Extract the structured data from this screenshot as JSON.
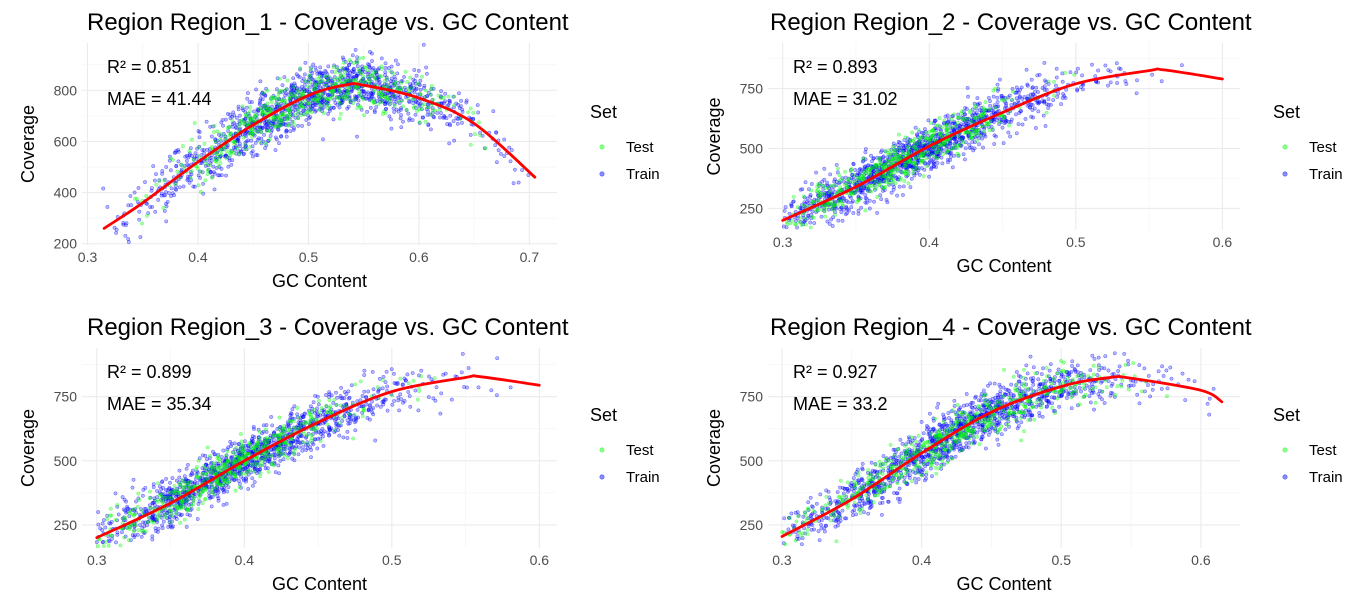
{
  "figure": {
    "legend_title": "Set"
  },
  "colors": {
    "test": "#00ff00",
    "train": "#0000ff",
    "fit": "#ff0000",
    "grid": "#ebebeb"
  },
  "chart_data": [
    {
      "type": "scatter",
      "title": "Region Region_1 - Coverage vs. GC Content",
      "xlabel": "GC Content",
      "ylabel": "Coverage",
      "xlim": [
        0.295,
        0.725
      ],
      "ylim": [
        195,
        985
      ],
      "xticks": [
        0.3,
        0.4,
        0.5,
        0.6,
        0.7
      ],
      "xtick_labels": [
        "0.3",
        "0.4",
        "0.5",
        "0.6",
        "0.7"
      ],
      "yticks": [
        200,
        400,
        600,
        800
      ],
      "ytick_labels": [
        "200",
        "400",
        "600",
        "800"
      ],
      "grid": true,
      "legend_position": "right",
      "annotations": [
        "R² = 0.851",
        "MAE = 41.44"
      ],
      "series": [
        {
          "name": "Test",
          "cloud": {
            "x_min": 0.33,
            "x_max": 0.68,
            "center": 0.5,
            "spread": 0.07,
            "y_noise": 48
          }
        },
        {
          "name": "Train",
          "cloud": {
            "x_min": 0.31,
            "x_max": 0.705,
            "center": 0.5,
            "spread": 0.08,
            "y_noise": 55
          }
        }
      ],
      "fit_line": {
        "x": [
          0.315,
          0.35,
          0.4,
          0.45,
          0.5,
          0.535,
          0.55,
          0.6,
          0.65,
          0.705
        ],
        "y": [
          260,
          360,
          520,
          665,
          780,
          822,
          820,
          770,
          670,
          460
        ]
      }
    },
    {
      "type": "scatter",
      "title": "Region Region_2 - Coverage vs. GC Content",
      "xlabel": "GC Content",
      "ylabel": "Coverage",
      "xlim": [
        0.29,
        0.612
      ],
      "ylim": [
        160,
        940
      ],
      "xticks": [
        0.3,
        0.4,
        0.5,
        0.6
      ],
      "xtick_labels": [
        "0.3",
        "0.4",
        "0.5",
        "0.6"
      ],
      "yticks": [
        250,
        500,
        750
      ],
      "ytick_labels": [
        "250",
        "500",
        "750"
      ],
      "grid": true,
      "legend_position": "right",
      "annotations": [
        "R² = 0.893",
        "MAE = 31.02"
      ],
      "series": [
        {
          "name": "Test",
          "cloud": {
            "x_min": 0.3,
            "x_max": 0.52,
            "center": 0.38,
            "spread": 0.045,
            "y_noise": 42
          }
        },
        {
          "name": "Train",
          "cloud": {
            "x_min": 0.3,
            "x_max": 0.6,
            "center": 0.39,
            "spread": 0.055,
            "y_noise": 48
          }
        }
      ],
      "fit_line": {
        "x": [
          0.3,
          0.35,
          0.4,
          0.45,
          0.5,
          0.55,
          0.56,
          0.6
        ],
        "y": [
          200,
          340,
          510,
          650,
          770,
          825,
          828,
          790
        ]
      }
    },
    {
      "type": "scatter",
      "title": "Region Region_3 - Coverage vs. GC Content",
      "xlabel": "GC Content",
      "ylabel": "Coverage",
      "xlim": [
        0.29,
        0.612
      ],
      "ylim": [
        160,
        940
      ],
      "xticks": [
        0.3,
        0.4,
        0.5,
        0.6
      ],
      "xtick_labels": [
        "0.3",
        "0.4",
        "0.5",
        "0.6"
      ],
      "yticks": [
        250,
        500,
        750
      ],
      "ytick_labels": [
        "250",
        "500",
        "750"
      ],
      "grid": true,
      "legend_position": "right",
      "annotations": [
        "R² = 0.899",
        "MAE = 35.34"
      ],
      "series": [
        {
          "name": "Test",
          "cloud": {
            "x_min": 0.3,
            "x_max": 0.53,
            "center": 0.39,
            "spread": 0.05,
            "y_noise": 42
          }
        },
        {
          "name": "Train",
          "cloud": {
            "x_min": 0.3,
            "x_max": 0.6,
            "center": 0.4,
            "spread": 0.055,
            "y_noise": 48
          }
        }
      ],
      "fit_line": {
        "x": [
          0.3,
          0.35,
          0.4,
          0.45,
          0.5,
          0.55,
          0.56,
          0.6
        ],
        "y": [
          200,
          335,
          500,
          650,
          770,
          825,
          828,
          795
        ]
      }
    },
    {
      "type": "scatter",
      "title": "Region Region_4 - Coverage vs. GC Content",
      "xlabel": "GC Content",
      "ylabel": "Coverage",
      "xlim": [
        0.29,
        0.628
      ],
      "ylim": [
        160,
        940
      ],
      "xticks": [
        0.3,
        0.4,
        0.5,
        0.6
      ],
      "xtick_labels": [
        "0.3",
        "0.4",
        "0.5",
        "0.6"
      ],
      "yticks": [
        250,
        500,
        750
      ],
      "ytick_labels": [
        "250",
        "500",
        "750"
      ],
      "grid": true,
      "legend_position": "right",
      "annotations": [
        "R² = 0.927",
        "MAE = 33.2"
      ],
      "series": [
        {
          "name": "Test",
          "cloud": {
            "x_min": 0.3,
            "x_max": 0.58,
            "center": 0.42,
            "spread": 0.06,
            "y_noise": 42
          }
        },
        {
          "name": "Train",
          "cloud": {
            "x_min": 0.3,
            "x_max": 0.615,
            "center": 0.42,
            "spread": 0.065,
            "y_noise": 48
          }
        }
      ],
      "fit_line": {
        "x": [
          0.3,
          0.35,
          0.4,
          0.45,
          0.5,
          0.535,
          0.55,
          0.6,
          0.615
        ],
        "y": [
          205,
          350,
          530,
          690,
          790,
          825,
          822,
          775,
          730
        ]
      }
    }
  ]
}
